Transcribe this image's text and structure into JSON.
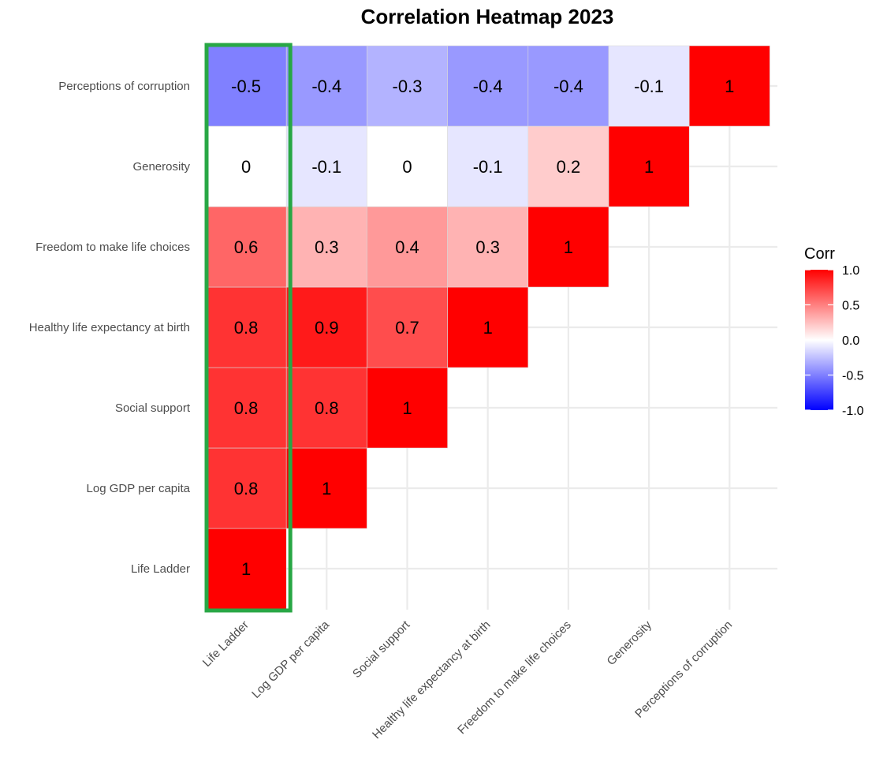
{
  "chart_data": {
    "type": "heatmap",
    "title": "Correlation Heatmap 2023",
    "xlabel": "",
    "ylabel": "",
    "variables": [
      "Life Ladder",
      "Log GDP per capita",
      "Social support",
      "Healthy life expectancy at birth",
      "Freedom to make life choices",
      "Generosity",
      "Perceptions of corruption"
    ],
    "cells": [
      {
        "x": "Life Ladder",
        "y": "Life Ladder",
        "value": 1,
        "label": "1"
      },
      {
        "x": "Life Ladder",
        "y": "Log GDP per capita",
        "value": 0.8,
        "label": "0.8"
      },
      {
        "x": "Life Ladder",
        "y": "Social support",
        "value": 0.8,
        "label": "0.8"
      },
      {
        "x": "Life Ladder",
        "y": "Healthy life expectancy at birth",
        "value": 0.8,
        "label": "0.8"
      },
      {
        "x": "Life Ladder",
        "y": "Freedom to make life choices",
        "value": 0.6,
        "label": "0.6"
      },
      {
        "x": "Life Ladder",
        "y": "Generosity",
        "value": 0,
        "label": "0"
      },
      {
        "x": "Life Ladder",
        "y": "Perceptions of corruption",
        "value": -0.5,
        "label": "-0.5"
      },
      {
        "x": "Log GDP per capita",
        "y": "Log GDP per capita",
        "value": 1,
        "label": "1"
      },
      {
        "x": "Log GDP per capita",
        "y": "Social support",
        "value": 0.8,
        "label": "0.8"
      },
      {
        "x": "Log GDP per capita",
        "y": "Healthy life expectancy at birth",
        "value": 0.9,
        "label": "0.9"
      },
      {
        "x": "Log GDP per capita",
        "y": "Freedom to make life choices",
        "value": 0.3,
        "label": "0.3"
      },
      {
        "x": "Log GDP per capita",
        "y": "Generosity",
        "value": -0.1,
        "label": "-0.1"
      },
      {
        "x": "Log GDP per capita",
        "y": "Perceptions of corruption",
        "value": -0.4,
        "label": "-0.4"
      },
      {
        "x": "Social support",
        "y": "Social support",
        "value": 1,
        "label": "1"
      },
      {
        "x": "Social support",
        "y": "Healthy life expectancy at birth",
        "value": 0.7,
        "label": "0.7"
      },
      {
        "x": "Social support",
        "y": "Freedom to make life choices",
        "value": 0.4,
        "label": "0.4"
      },
      {
        "x": "Social support",
        "y": "Generosity",
        "value": 0,
        "label": "0"
      },
      {
        "x": "Social support",
        "y": "Perceptions of corruption",
        "value": -0.3,
        "label": "-0.3"
      },
      {
        "x": "Healthy life expectancy at birth",
        "y": "Healthy life expectancy at birth",
        "value": 1,
        "label": "1"
      },
      {
        "x": "Healthy life expectancy at birth",
        "y": "Freedom to make life choices",
        "value": 0.3,
        "label": "0.3"
      },
      {
        "x": "Healthy life expectancy at birth",
        "y": "Generosity",
        "value": -0.1,
        "label": "-0.1"
      },
      {
        "x": "Healthy life expectancy at birth",
        "y": "Perceptions of corruption",
        "value": -0.4,
        "label": "-0.4"
      },
      {
        "x": "Freedom to make life choices",
        "y": "Freedom to make life choices",
        "value": 1,
        "label": "1"
      },
      {
        "x": "Freedom to make life choices",
        "y": "Generosity",
        "value": 0.2,
        "label": "0.2"
      },
      {
        "x": "Freedom to make life choices",
        "y": "Perceptions of corruption",
        "value": -0.4,
        "label": "-0.4"
      },
      {
        "x": "Generosity",
        "y": "Generosity",
        "value": 1,
        "label": "1"
      },
      {
        "x": "Generosity",
        "y": "Perceptions of corruption",
        "value": -0.1,
        "label": "-0.1"
      },
      {
        "x": "Perceptions of corruption",
        "y": "Perceptions of corruption",
        "value": 1,
        "label": "1"
      }
    ],
    "legend": {
      "title": "Corr",
      "position": "right",
      "range": [
        -1,
        1
      ],
      "ticks": [
        {
          "value": 1,
          "label": "1.0"
        },
        {
          "value": 0.5,
          "label": "0.5"
        },
        {
          "value": 0,
          "label": "0.0"
        },
        {
          "value": -0.5,
          "label": "-0.5"
        },
        {
          "value": -1,
          "label": "-1.0"
        }
      ],
      "colors": {
        "low": "#0000ff",
        "mid": "#ffffff",
        "high": "#ff0000"
      }
    },
    "highlight": {
      "column": "Life Ladder",
      "color": "#28a745"
    },
    "grid": true
  }
}
